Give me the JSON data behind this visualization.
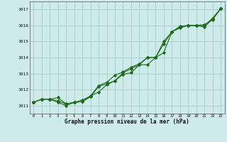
{
  "title": "Graphe pression niveau de la mer (hPa)",
  "bg_color": "#ceeaea",
  "grid_color": "#aacfcf",
  "line_color": "#1a6b1a",
  "xlim": [
    -0.5,
    23.5
  ],
  "ylim": [
    1010.5,
    1017.5
  ],
  "xticks": [
    0,
    1,
    2,
    3,
    4,
    5,
    6,
    7,
    8,
    9,
    10,
    11,
    12,
    13,
    14,
    15,
    16,
    17,
    18,
    19,
    20,
    21,
    22,
    23
  ],
  "yticks": [
    1011,
    1012,
    1013,
    1014,
    1015,
    1016,
    1017
  ],
  "series1_x": [
    0,
    1,
    2,
    3,
    4,
    5,
    6,
    7,
    8,
    9,
    10,
    11,
    12,
    13,
    14,
    15,
    16,
    17,
    18,
    19,
    20,
    21,
    22,
    23
  ],
  "series1_y": [
    1011.2,
    1011.4,
    1011.4,
    1011.2,
    1011.0,
    1011.2,
    1011.25,
    1011.55,
    1012.2,
    1012.35,
    1012.55,
    1013.05,
    1013.3,
    1013.55,
    1014.0,
    1014.0,
    1015.0,
    1015.6,
    1015.85,
    1016.0,
    1016.0,
    1015.9,
    1016.4,
    1017.05
  ],
  "series2_x": [
    0,
    1,
    2,
    3,
    4,
    5,
    6,
    7,
    8,
    9,
    10,
    11,
    12,
    13,
    14,
    15,
    16,
    17,
    18,
    19,
    20,
    21,
    22,
    23
  ],
  "series2_y": [
    1011.2,
    1011.4,
    1011.4,
    1011.5,
    1011.1,
    1011.2,
    1011.35,
    1011.6,
    1012.25,
    1012.45,
    1012.9,
    1013.1,
    1013.4,
    1013.6,
    1014.0,
    1014.0,
    1014.85,
    1015.6,
    1015.9,
    1016.0,
    1016.0,
    1016.05,
    1016.35,
    1017.05
  ],
  "series3_x": [
    0,
    1,
    2,
    3,
    4,
    5,
    6,
    7,
    8,
    9,
    10,
    11,
    12,
    13,
    14,
    15,
    16,
    17,
    18,
    19,
    20,
    21,
    22,
    23
  ],
  "series3_y": [
    1011.2,
    1011.4,
    1011.4,
    1011.3,
    1011.1,
    1011.2,
    1011.25,
    1011.6,
    1011.85,
    1012.3,
    1012.55,
    1012.95,
    1013.05,
    1013.55,
    1013.55,
    1014.0,
    1014.3,
    1015.6,
    1015.95,
    1016.0,
    1016.0,
    1016.0,
    1016.45,
    1017.05
  ]
}
